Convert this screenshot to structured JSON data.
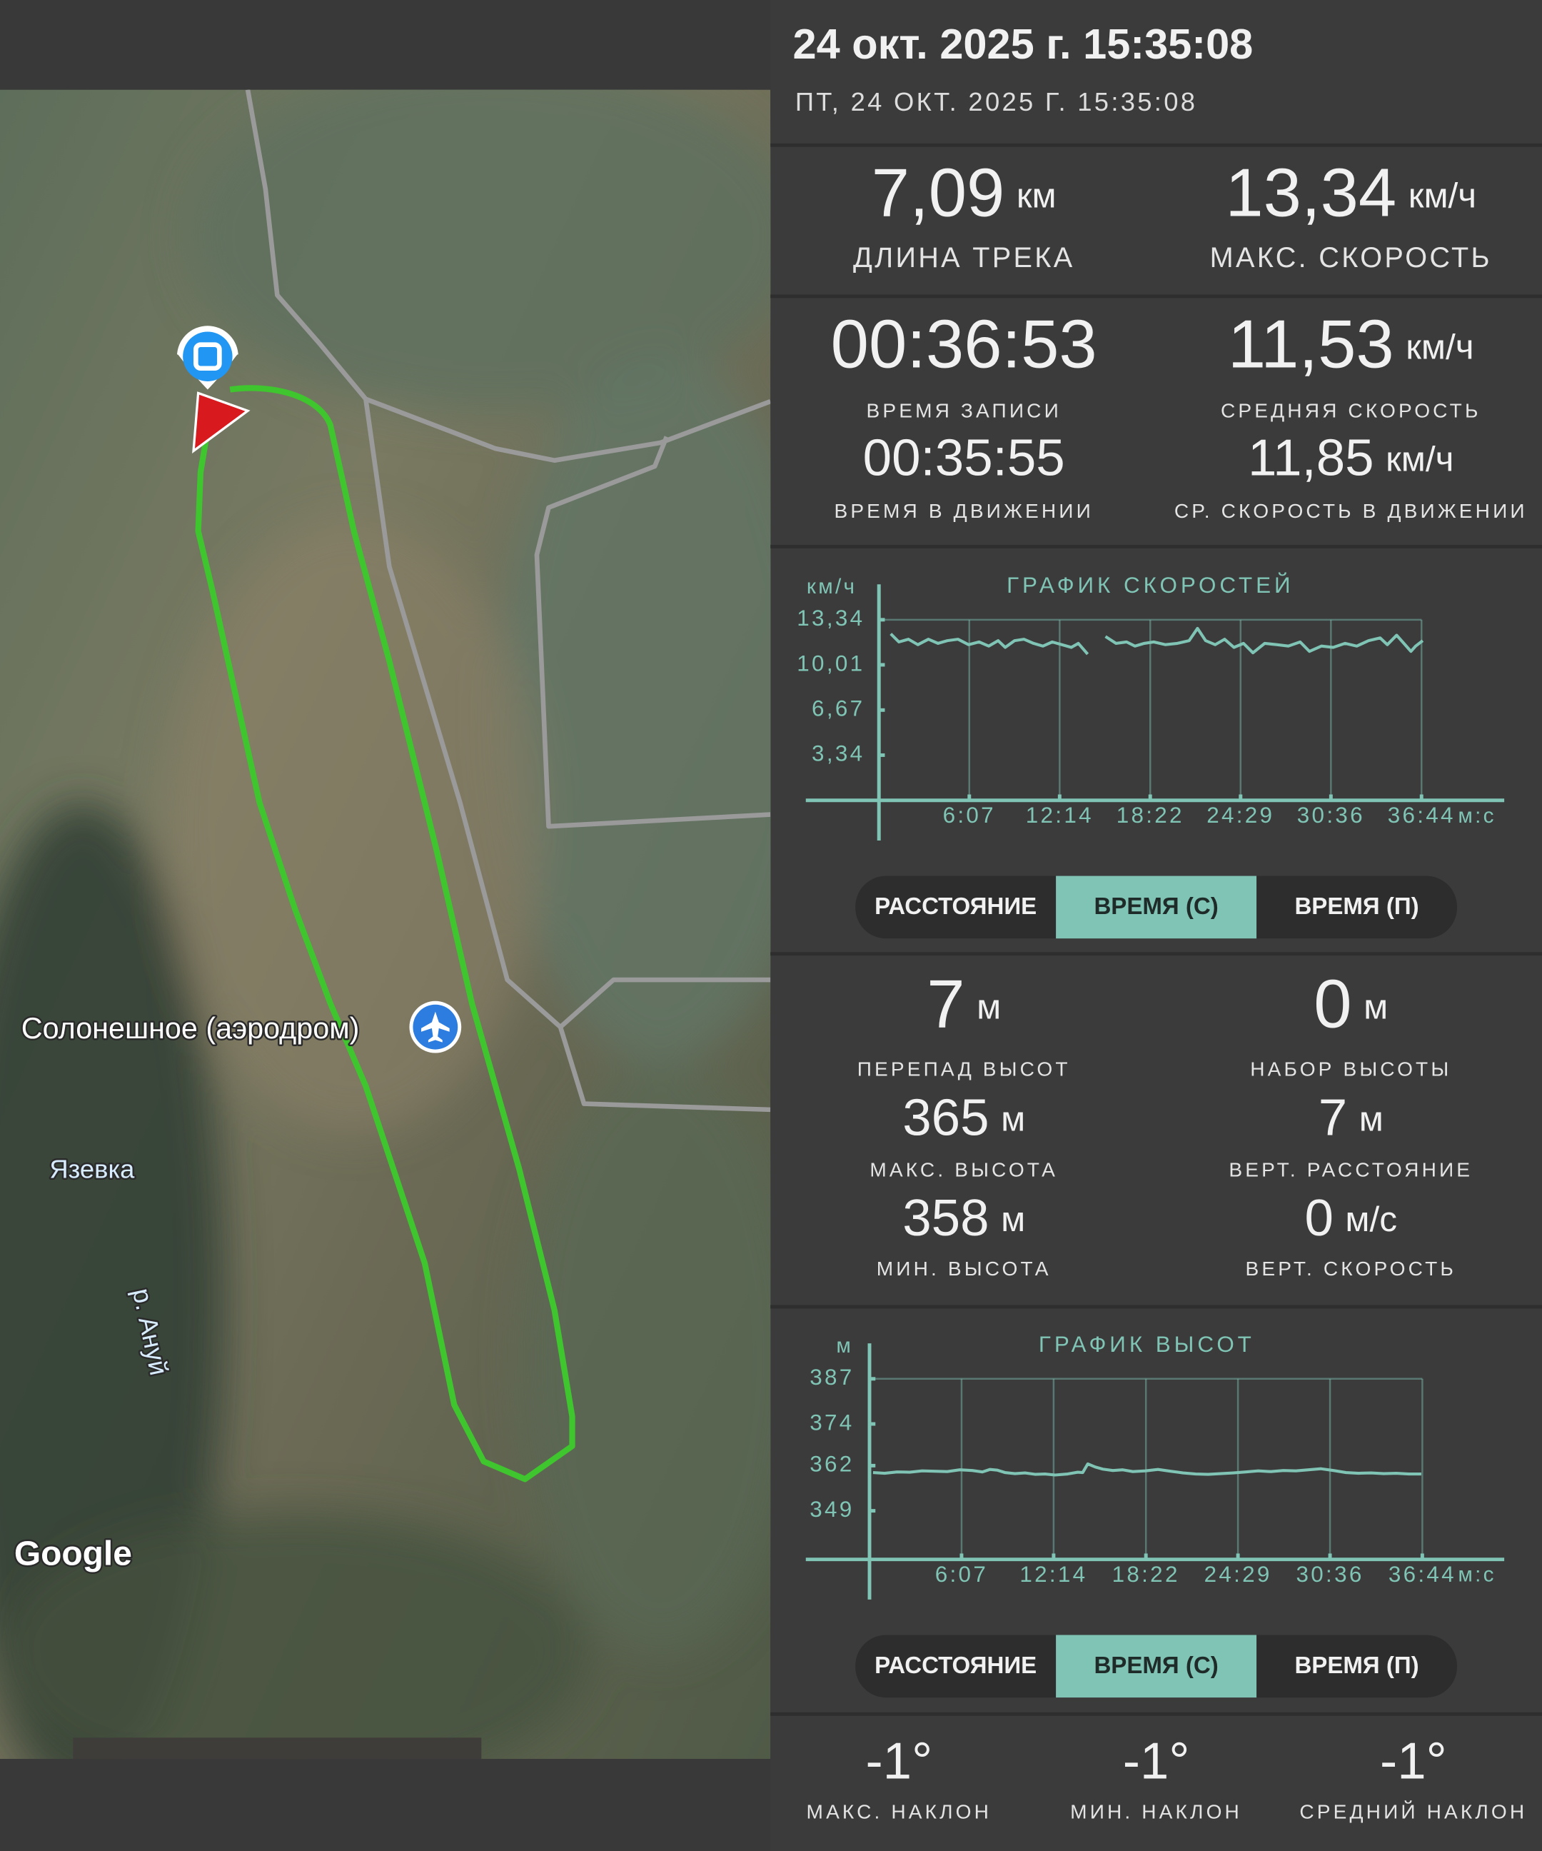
{
  "header": {
    "title": "24 окт. 2025 г. 15:35:08",
    "subtitle": "ПТ, 24 ОКТ. 2025 Г. 15:35:08"
  },
  "map": {
    "labels": [
      "Солонешное (аэродром)",
      "Язевка",
      "р. Ануй"
    ],
    "attribution": "Google"
  },
  "stats": [
    {
      "value": "7,09",
      "unit": "км",
      "label": "ДЛИНА ТРЕКА"
    },
    {
      "value": "13,34",
      "unit": "км/ч",
      "label": "МАКС. СКОРОСТЬ"
    },
    {
      "value": "00:36:53",
      "label": "ВРЕМЯ ЗАПИСИ"
    },
    {
      "value": "11,53",
      "unit": "км/ч",
      "label": "СРЕДНЯЯ СКОРОСТЬ"
    },
    {
      "value": "00:35:55",
      "label": "ВРЕМЯ В ДВИЖЕНИИ"
    },
    {
      "value": "11,85",
      "unit": "км/ч",
      "label": "СР. СКОРОСТЬ В ДВИЖЕНИИ"
    }
  ],
  "speed_modes": {
    "options": [
      "РАССТОЯНИЕ",
      "ВРЕМЯ (С)",
      "ВРЕМЯ (П)"
    ],
    "selected": 1
  },
  "elevation_stats": [
    {
      "value": "7",
      "unit": "м",
      "label": "ПЕРЕПАД ВЫСОТ"
    },
    {
      "value": "0",
      "unit": "м",
      "label": "НАБОР ВЫСОТЫ"
    },
    {
      "value": "365",
      "unit": "м",
      "label": "МАКС. ВЫСОТА"
    },
    {
      "value": "7",
      "unit": "м",
      "label": "ВЕРТ. РАССТОЯНИЕ"
    },
    {
      "value": "358",
      "unit": "м",
      "label": "МИН. ВЫСОТА"
    },
    {
      "value": "0",
      "unit": "м/с",
      "label": "ВЕРТ. СКОРОСТЬ"
    }
  ],
  "elevation_modes": {
    "options": [
      "РАССТОЯНИЕ",
      "ВРЕМЯ (С)",
      "ВРЕМЯ (П)"
    ],
    "selected": 1
  },
  "slopes": [
    {
      "value": "-1°",
      "label": "МАКС. НАКЛОН"
    },
    {
      "value": "-1°",
      "label": "МИН. НАКЛОН"
    },
    {
      "value": "-1°",
      "label": "СРЕДНИЙ НАКЛОН"
    }
  ],
  "chart_data": [
    {
      "type": "line",
      "title": "ГРАФИК СКОРОСТЕЙ",
      "y_label": "км/ч",
      "x_label": "м:с",
      "grid": true,
      "x": [
        48,
        81,
        120,
        158,
        201,
        240,
        278,
        321,
        364,
        407,
        446,
        484,
        513,
        551,
        589,
        628,
        666,
        704,
        743,
        781,
        810,
        848,
        884,
        920,
        963,
        1006,
        1040,
        1078,
        1116,
        1164,
        1212,
        1260,
        1294,
        1327,
        1366,
        1404,
        1442,
        1481,
        1519,
        1567,
        1615,
        1663,
        1711,
        1749,
        1797,
        1845,
        1893,
        1941,
        1989,
        2036,
        2065,
        2103,
        2132,
        2161,
        2180,
        2209
      ],
      "series": [
        {
          "color": "#7fc4b4",
          "values": [
            12.3,
            11.7,
            11.9,
            11.5,
            11.9,
            11.6,
            11.8,
            11.9,
            11.5,
            11.7,
            11.4,
            11.8,
            11.3,
            11.8,
            11.9,
            11.6,
            11.4,
            11.7,
            11.5,
            11.3,
            11.6,
            10.8,
            null,
            12.1,
            11.6,
            11.7,
            11.4,
            11.6,
            11.7,
            11.5,
            11.6,
            11.8,
            12.7,
            11.8,
            11.5,
            11.9,
            11.3,
            11.6,
            10.9,
            11.6,
            11.5,
            11.4,
            11.7,
            11.0,
            11.4,
            11.3,
            11.6,
            11.4,
            11.8,
            12.0,
            11.5,
            12.2,
            11.6,
            11.0,
            11.4,
            11.8
          ]
        }
      ],
      "xlim": [
        0,
        2540
      ],
      "ylim": [
        0,
        13.34
      ],
      "yticks": [
        {
          "value": 13.34,
          "label": "13,34"
        },
        {
          "value": 10.01,
          "label": "10,01"
        },
        {
          "value": 6.67,
          "label": "6,67"
        },
        {
          "value": 3.34,
          "label": "3,34"
        }
      ],
      "xticks": [
        {
          "value": 367,
          "label": "6:07"
        },
        {
          "value": 734,
          "label": "12:14"
        },
        {
          "value": 1102,
          "label": "18:22"
        },
        {
          "value": 1469,
          "label": "24:29"
        },
        {
          "value": 1836,
          "label": "30:36"
        },
        {
          "value": 2204,
          "label": "36:44"
        }
      ]
    },
    {
      "type": "line",
      "title": "ГРАФИК ВЫСОТ",
      "y_label": "м",
      "x_label": "м:с",
      "grid": true,
      "x": [
        14,
        60,
        110,
        160,
        210,
        260,
        310,
        360,
        410,
        450,
        480,
        510,
        540,
        580,
        620,
        660,
        700,
        740,
        790,
        830,
        850,
        870,
        900,
        930,
        970,
        1010,
        1050,
        1100,
        1150,
        1200,
        1250,
        1300,
        1350,
        1400,
        1450,
        1500,
        1550,
        1600,
        1650,
        1700,
        1750,
        1800,
        1850,
        1900,
        1950,
        2000,
        2050,
        2100,
        2150,
        2200
      ],
      "series": [
        {
          "color": "#7fc4b4",
          "values": [
            360.0,
            359.8,
            360.2,
            360.1,
            360.5,
            360.4,
            360.3,
            360.8,
            360.6,
            360.2,
            360.9,
            360.7,
            360.0,
            359.7,
            359.9,
            359.5,
            359.6,
            359.3,
            359.6,
            360.1,
            360.0,
            362.5,
            361.6,
            361.0,
            360.6,
            360.8,
            360.3,
            360.5,
            360.9,
            360.4,
            359.9,
            359.6,
            359.5,
            359.7,
            359.9,
            360.2,
            360.5,
            360.3,
            360.6,
            360.5,
            360.8,
            361.1,
            360.6,
            360.0,
            359.8,
            359.9,
            359.7,
            359.8,
            359.6,
            359.6
          ]
        }
      ],
      "xlim": [
        0,
        2540
      ],
      "ylim": [
        335,
        387
      ],
      "yticks": [
        387,
        374,
        362,
        349
      ],
      "xticks": [
        {
          "value": 367,
          "label": "6:07"
        },
        {
          "value": 734,
          "label": "12:14"
        },
        {
          "value": 1102,
          "label": "18:22"
        },
        {
          "value": 1469,
          "label": "24:29"
        },
        {
          "value": 1836,
          "label": "30:36"
        },
        {
          "value": 2204,
          "label": "36:44"
        }
      ]
    }
  ]
}
